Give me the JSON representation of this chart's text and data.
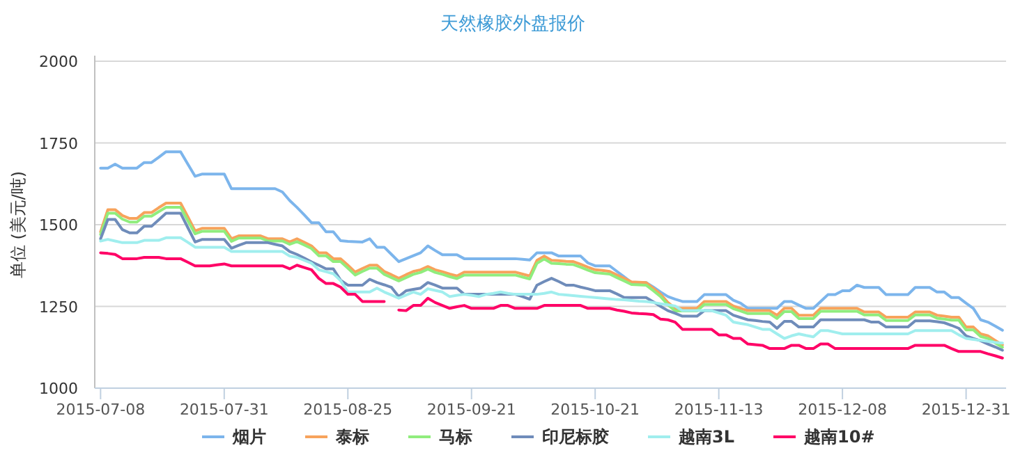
{
  "chart_data": {
    "type": "line",
    "title": "天然橡胶外盘报价",
    "ylabel": "单位 (美元/吨)",
    "ylim": [
      1000,
      2000
    ],
    "yticks": [
      1000,
      1250,
      1500,
      1750,
      2000
    ],
    "categories": [
      "2015-07-08",
      null,
      null,
      null,
      null,
      null,
      null,
      null,
      null,
      null,
      null,
      null,
      null,
      null,
      null,
      null,
      null,
      "2015-07-31",
      null,
      null,
      null,
      null,
      null,
      null,
      null,
      null,
      null,
      null,
      null,
      null,
      null,
      null,
      null,
      null,
      "2015-08-25",
      null,
      null,
      null,
      null,
      null,
      null,
      null,
      null,
      null,
      null,
      null,
      null,
      null,
      null,
      null,
      null,
      "2015-09-21",
      null,
      null,
      null,
      null,
      null,
      null,
      null,
      null,
      null,
      null,
      null,
      null,
      null,
      null,
      null,
      null,
      "2015-10-21",
      null,
      null,
      null,
      null,
      null,
      null,
      null,
      null,
      null,
      null,
      null,
      null,
      null,
      null,
      null,
      null,
      "2015-11-13",
      null,
      null,
      null,
      null,
      null,
      null,
      null,
      null,
      null,
      null,
      null,
      null,
      null,
      null,
      null,
      null,
      "2015-12-08",
      null,
      null,
      null,
      null,
      null,
      null,
      null,
      null,
      null,
      null,
      null,
      null,
      null,
      null,
      null,
      null,
      "2015-12-31",
      null,
      null,
      null,
      null,
      null
    ],
    "grid": "y",
    "legend": "bottom",
    "series": [
      {
        "name": "烟片",
        "color": "#7cb5ec",
        "values": [
          1673,
          1673,
          1685,
          1673,
          1673,
          1673,
          1690,
          1690,
          1706,
          1723,
          1723,
          1723,
          1685,
          1648,
          1655,
          1655,
          1655,
          1655,
          1610,
          1610,
          1610,
          1610,
          1610,
          1610,
          1610,
          1600,
          1574,
          1553,
          1530,
          1506,
          1506,
          1478,
          1478,
          1451,
          1449,
          1448,
          1447,
          1457,
          1431,
          1431,
          1409,
          1387,
          1396,
          1405,
          1414,
          1435,
          1421,
          1408,
          1408,
          1408,
          1396,
          1396,
          1396,
          1396,
          1396,
          1396,
          1396,
          1396,
          1394,
          1392,
          1414,
          1414,
          1414,
          1404,
          1404,
          1404,
          1404,
          1383,
          1374,
          1374,
          1374,
          1357,
          1340,
          1323,
          1323,
          1323,
          1309,
          1294,
          1280,
          1272,
          1265,
          1265,
          1265,
          1286,
          1286,
          1286,
          1286,
          1269,
          1260,
          1244,
          1244,
          1244,
          1244,
          1244,
          1265,
          1265,
          1254,
          1244,
          1244,
          1265,
          1286,
          1286,
          1298,
          1298,
          1315,
          1308,
          1308,
          1308,
          1286,
          1286,
          1286,
          1286,
          1308,
          1308,
          1308,
          1294,
          1294,
          1277,
          1277,
          1260,
          1244,
          1209,
          1202,
          1190,
          1177
        ]
      },
      {
        "name": "泰标",
        "color": "#f7a35c",
        "values": [
          1478,
          1546,
          1546,
          1528,
          1519,
          1519,
          1537,
          1537,
          1552,
          1566,
          1566,
          1566,
          1524,
          1481,
          1489,
          1489,
          1489,
          1489,
          1457,
          1466,
          1466,
          1466,
          1466,
          1457,
          1457,
          1457,
          1447,
          1457,
          1446,
          1435,
          1414,
          1414,
          1396,
          1396,
          1376,
          1355,
          1366,
          1376,
          1376,
          1357,
          1347,
          1336,
          1347,
          1357,
          1362,
          1372,
          1362,
          1356,
          1349,
          1343,
          1355,
          1355,
          1355,
          1355,
          1355,
          1355,
          1355,
          1355,
          1349,
          1343,
          1391,
          1404,
          1391,
          1390,
          1388,
          1387,
          1379,
          1370,
          1362,
          1360,
          1357,
          1346,
          1336,
          1325,
          1324,
          1323,
          1305,
          1287,
          1262,
          1244,
          1244,
          1244,
          1244,
          1265,
          1265,
          1265,
          1265,
          1251,
          1244,
          1237,
          1237,
          1237,
          1237,
          1223,
          1244,
          1244,
          1223,
          1223,
          1223,
          1244,
          1244,
          1244,
          1244,
          1244,
          1244,
          1233,
          1233,
          1233,
          1217,
          1217,
          1217,
          1217,
          1233,
          1233,
          1233,
          1223,
          1220,
          1217,
          1217,
          1187,
          1187,
          1166,
          1160,
          1146,
          1132
        ]
      },
      {
        "name": "马标",
        "color": "#90ed7d",
        "values": [
          1470,
          1535,
          1535,
          1517,
          1508,
          1508,
          1526,
          1526,
          1540,
          1553,
          1553,
          1553,
          1512,
          1472,
          1480,
          1480,
          1480,
          1480,
          1449,
          1459,
          1459,
          1459,
          1459,
          1450,
          1450,
          1450,
          1440,
          1448,
          1438,
          1427,
          1405,
          1405,
          1387,
          1387,
          1367,
          1346,
          1357,
          1367,
          1367,
          1348,
          1338,
          1328,
          1338,
          1348,
          1354,
          1364,
          1354,
          1348,
          1341,
          1335,
          1346,
          1346,
          1346,
          1346,
          1346,
          1346,
          1346,
          1346,
          1340,
          1334,
          1382,
          1395,
          1382,
          1381,
          1379,
          1378,
          1370,
          1361,
          1353,
          1351,
          1349,
          1338,
          1328,
          1317,
          1316,
          1315,
          1298,
          1280,
          1255,
          1236,
          1236,
          1236,
          1236,
          1256,
          1256,
          1256,
          1256,
          1243,
          1236,
          1228,
          1228,
          1228,
          1228,
          1213,
          1234,
          1234,
          1213,
          1213,
          1213,
          1235,
          1235,
          1235,
          1235,
          1235,
          1235,
          1224,
          1224,
          1224,
          1207,
          1207,
          1207,
          1207,
          1224,
          1224,
          1224,
          1214,
          1211,
          1208,
          1208,
          1178,
          1178,
          1158,
          1152,
          1138,
          1125
        ]
      },
      {
        "name": "印尼标胶",
        "color": "#6f8cba",
        "values": [
          1457,
          1516,
          1516,
          1485,
          1475,
          1475,
          1495,
          1495,
          1515,
          1535,
          1535,
          1535,
          1491,
          1447,
          1455,
          1455,
          1455,
          1455,
          1428,
          1437,
          1445,
          1445,
          1445,
          1445,
          1440,
          1435,
          1418,
          1409,
          1398,
          1386,
          1376,
          1365,
          1365,
          1330,
          1315,
          1315,
          1315,
          1333,
          1323,
          1316,
          1308,
          1280,
          1298,
          1302,
          1306,
          1323,
          1315,
          1306,
          1306,
          1306,
          1287,
          1287,
          1287,
          1287,
          1287,
          1287,
          1287,
          1287,
          1280,
          1272,
          1315,
          1326,
          1336,
          1326,
          1315,
          1315,
          1309,
          1304,
          1298,
          1298,
          1298,
          1288,
          1277,
          1277,
          1277,
          1277,
          1264,
          1250,
          1237,
          1229,
          1220,
          1220,
          1220,
          1237,
          1237,
          1237,
          1237,
          1223,
          1216,
          1209,
          1207,
          1204,
          1202,
          1183,
          1204,
          1204,
          1187,
          1187,
          1187,
          1209,
          1209,
          1209,
          1209,
          1209,
          1209,
          1209,
          1202,
          1202,
          1187,
          1187,
          1187,
          1187,
          1206,
          1206,
          1206,
          1203,
          1200,
          1192,
          1183,
          1160,
          1152,
          1145,
          1135,
          1126,
          1116
        ]
      },
      {
        "name": "越南3L",
        "color": "#a0eeee",
        "values": [
          1450,
          1455,
          1450,
          1445,
          1445,
          1445,
          1452,
          1452,
          1452,
          1460,
          1460,
          1460,
          1446,
          1431,
          1431,
          1431,
          1431,
          1431,
          1418,
          1418,
          1418,
          1418,
          1418,
          1418,
          1418,
          1418,
          1404,
          1400,
          1391,
          1382,
          1362,
          1356,
          1350,
          1329,
          1294,
          1294,
          1294,
          1294,
          1306,
          1294,
          1285,
          1275,
          1285,
          1294,
          1287,
          1304,
          1299,
          1294,
          1280,
          1284,
          1287,
          1284,
          1280,
          1287,
          1290,
          1294,
          1290,
          1287,
          1287,
          1287,
          1287,
          1290,
          1294,
          1287,
          1285,
          1283,
          1281,
          1279,
          1277,
          1275,
          1273,
          1271,
          1270,
          1268,
          1266,
          1265,
          1262,
          1258,
          1255,
          1251,
          1237,
          1237,
          1237,
          1237,
          1237,
          1230,
          1223,
          1202,
          1198,
          1194,
          1187,
          1180,
          1180,
          1166,
          1152,
          1160,
          1166,
          1161,
          1157,
          1176,
          1176,
          1171,
          1166,
          1166,
          1166,
          1166,
          1166,
          1166,
          1166,
          1166,
          1166,
          1166,
          1176,
          1176,
          1176,
          1176,
          1176,
          1176,
          1163,
          1152,
          1149,
          1146,
          1143,
          1140,
          1138
        ]
      },
      {
        "name": "越南10#",
        "color": "#ff0066",
        "values": [
          1414,
          1412,
          1409,
          1396,
          1396,
          1396,
          1400,
          1400,
          1400,
          1396,
          1396,
          1396,
          1385,
          1374,
          1374,
          1374,
          1377,
          1380,
          1374,
          1374,
          1374,
          1374,
          1374,
          1374,
          1374,
          1374,
          1365,
          1376,
          1369,
          1362,
          1336,
          1320,
          1320,
          1309,
          1287,
          1287,
          1265,
          1265,
          1265,
          1265,
          null,
          1239,
          1237,
          1253,
          1253,
          1275,
          1262,
          1253,
          1244,
          1249,
          1253,
          1244,
          1244,
          1244,
          1244,
          1253,
          1253,
          1244,
          1244,
          1244,
          1244,
          1253,
          1253,
          1253,
          1253,
          1253,
          1253,
          1244,
          1244,
          1244,
          1244,
          1239,
          1235,
          1230,
          1228,
          1227,
          1225,
          1211,
          1209,
          1202,
          1180,
          1180,
          1180,
          1180,
          1180,
          1163,
          1163,
          1152,
          1152,
          1135,
          1133,
          1131,
          1121,
          1121,
          1121,
          1131,
          1131,
          1121,
          1121,
          1135,
          1135,
          1121,
          1121,
          1121,
          1121,
          1121,
          1121,
          1121,
          1121,
          1121,
          1121,
          1121,
          1131,
          1131,
          1131,
          1131,
          1131,
          1121,
          1112,
          1112,
          1112,
          1112,
          1105,
          1099,
          1092
        ]
      }
    ]
  }
}
